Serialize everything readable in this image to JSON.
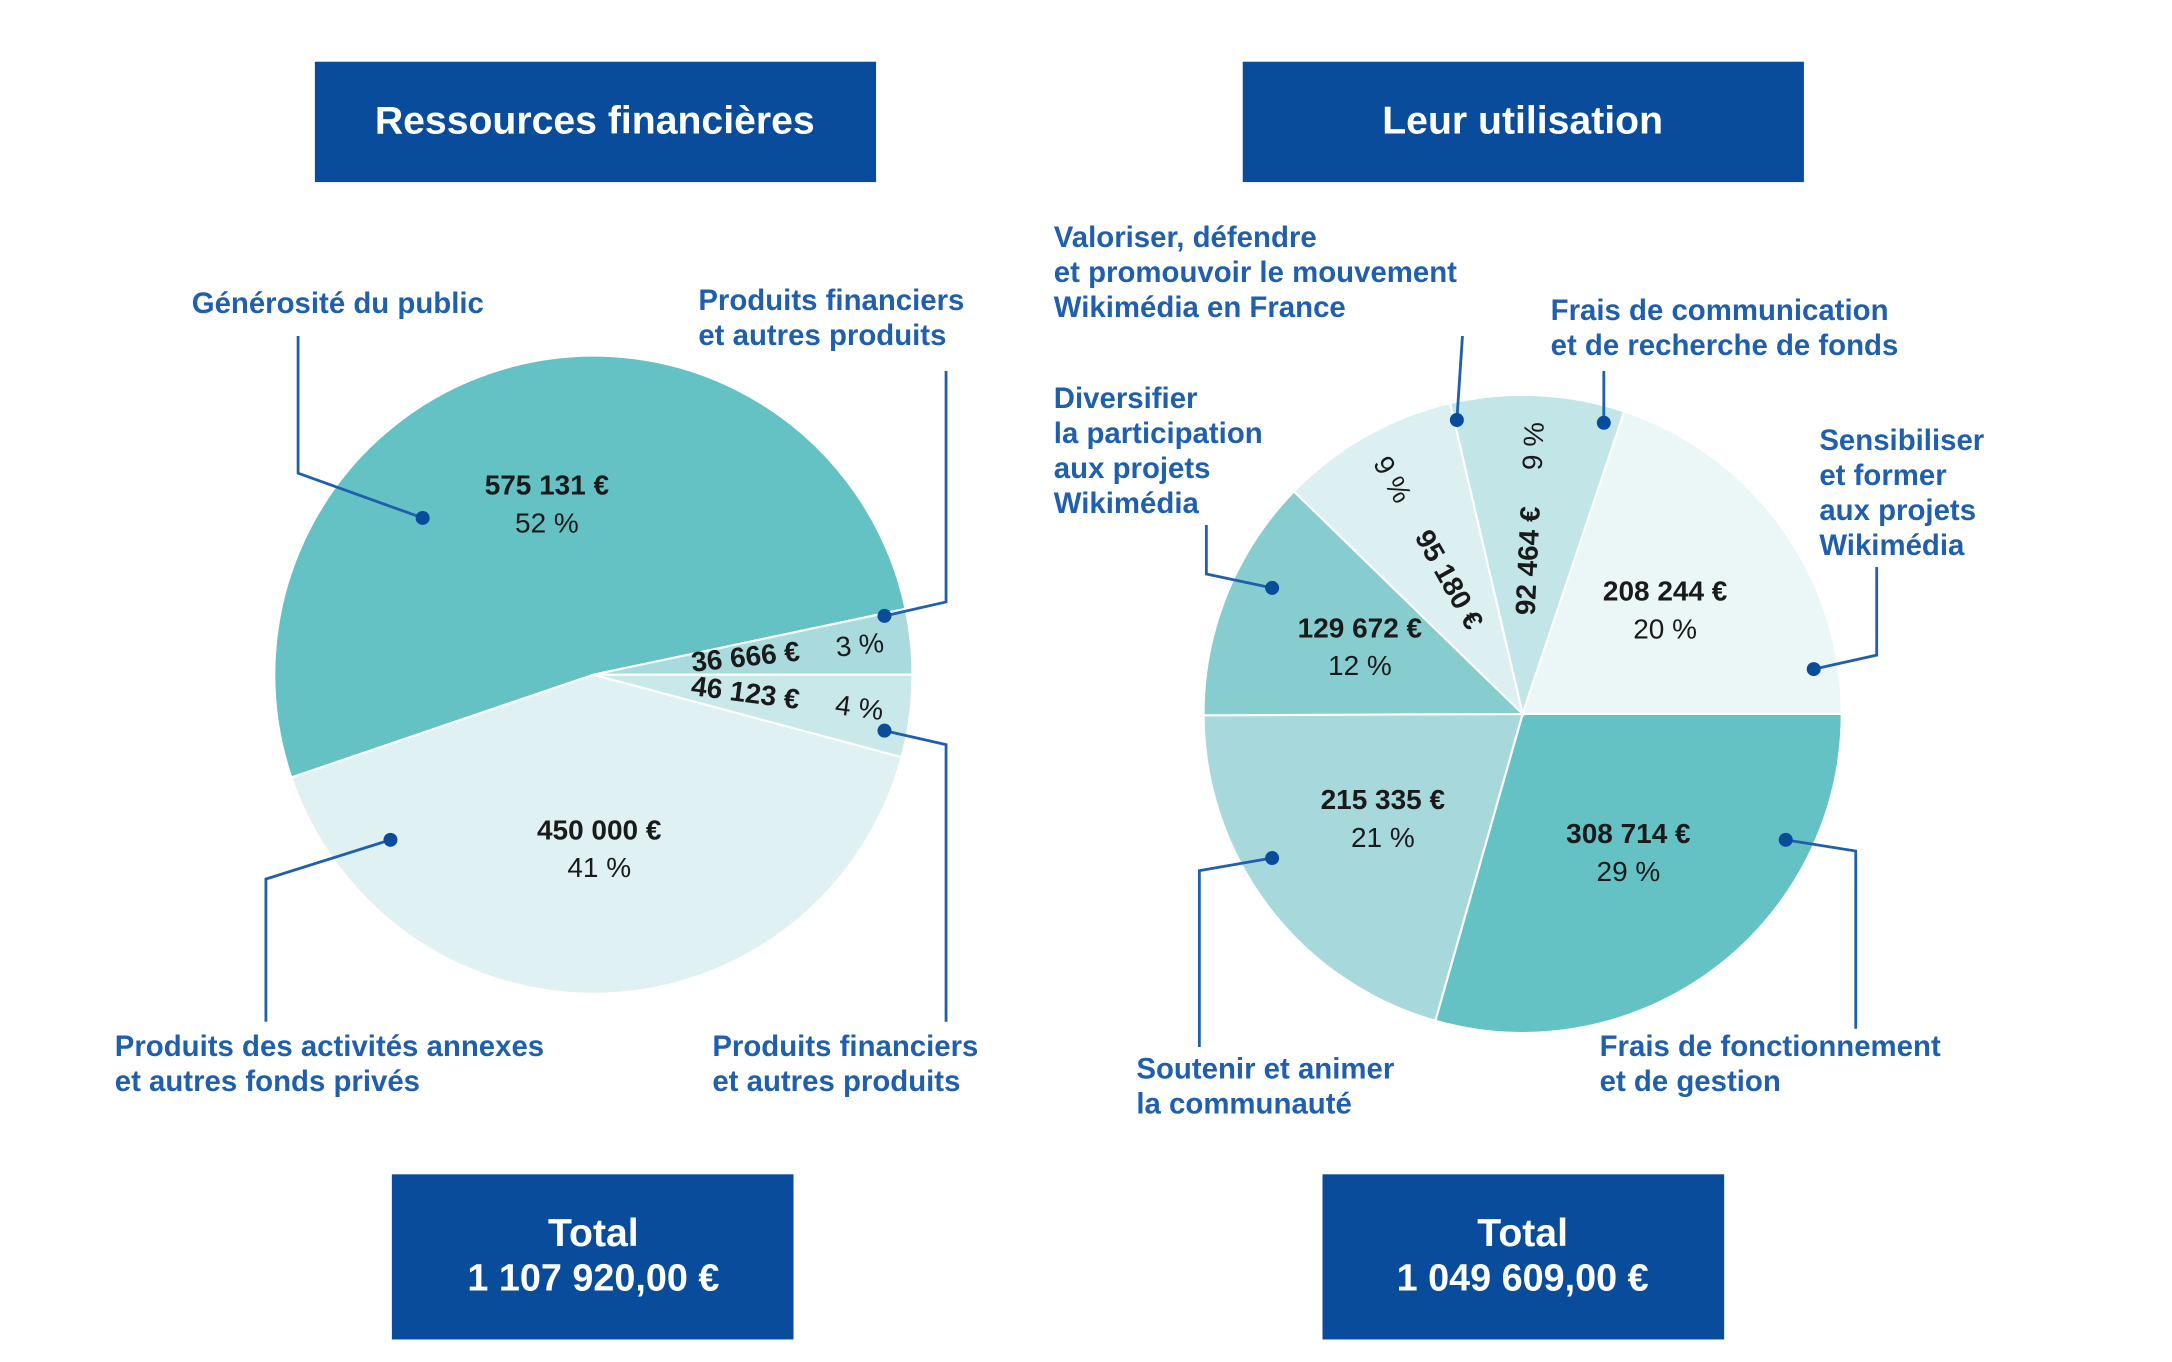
{
  "chart_data": [
    {
      "type": "pie",
      "title": "Ressources financières",
      "categories": [
        [
          "Générosité du public"
        ],
        [
          "Produits financiers",
          "et autres produits"
        ],
        [
          "Produits financiers",
          "et autres produits"
        ],
        [
          "Produits des activités annexes",
          "et autres fonds privés"
        ]
      ],
      "values": [
        575131,
        36666,
        46123,
        450000
      ],
      "value_labels": [
        "575 131 €",
        "36 666 €",
        "46 123 €",
        "450 000 €"
      ],
      "percent_labels": [
        "52 %",
        "3 %",
        "4 %",
        "41 %"
      ],
      "colors": [
        "#64c1c4",
        "#a9dadd",
        "#c9e8ea",
        "#e0f1f3"
      ],
      "total_label": "Total",
      "total": "1 107 920,00 €"
    },
    {
      "type": "pie",
      "title": "Leur utilisation",
      "categories": [
        [
          "Frais de fonctionnement",
          "et de gestion"
        ],
        [
          "Soutenir et animer",
          "la communauté"
        ],
        [
          "Diversifier",
          "la participation",
          "aux projets",
          "Wikimédia"
        ],
        [
          "Valoriser, défendre",
          "et promouvoir le mouvement",
          "Wikimédia en France"
        ],
        [
          "Frais de communication",
          "et de recherche de fonds"
        ],
        [
          "Sensibiliser",
          "et former",
          "aux projets",
          "Wikimédia"
        ]
      ],
      "values": [
        308714,
        215335,
        129672,
        95180,
        92464,
        208244
      ],
      "value_labels": [
        "308 714 €",
        "215 335 €",
        "129 672 €",
        "95 180 €",
        "92 464 €",
        "208 244 €"
      ],
      "percent_labels": [
        "29 %",
        "21 %",
        "12 %",
        "9 %",
        "9 %",
        "20 %"
      ],
      "colors": [
        "#64c1c4",
        "#a7d9dc",
        "#87cdd0",
        "#dceff1",
        "#c2e5e7",
        "#ebf6f7"
      ],
      "total_label": "Total",
      "total": "1 049 609,00 €"
    }
  ]
}
